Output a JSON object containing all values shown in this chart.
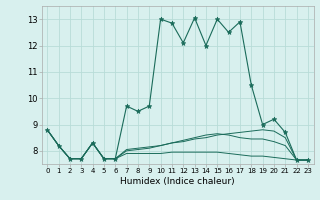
{
  "xlabel": "Humidex (Indice chaleur)",
  "background_color": "#d8f0ee",
  "grid_color": "#b8dcd8",
  "line_color": "#1a6b5a",
  "xlim": [
    -0.5,
    23.5
  ],
  "ylim": [
    7.5,
    13.5
  ],
  "xticks": [
    0,
    1,
    2,
    3,
    4,
    5,
    6,
    7,
    8,
    9,
    10,
    11,
    12,
    13,
    14,
    15,
    16,
    17,
    18,
    19,
    20,
    21,
    22,
    23
  ],
  "yticks": [
    8,
    9,
    10,
    11,
    12,
    13
  ],
  "series_main": [
    8.8,
    8.2,
    7.7,
    7.7,
    8.3,
    7.7,
    7.7,
    9.7,
    9.5,
    9.7,
    13.0,
    12.85,
    12.1,
    13.05,
    12.0,
    13.0,
    12.5,
    12.9,
    10.5,
    9.0,
    9.2,
    8.7,
    7.65,
    7.65
  ],
  "series_other": [
    [
      8.8,
      8.2,
      7.7,
      7.7,
      8.3,
      7.7,
      7.7,
      8.05,
      8.1,
      8.15,
      8.2,
      8.3,
      8.35,
      8.45,
      8.5,
      8.6,
      8.65,
      8.7,
      8.75,
      8.8,
      8.75,
      8.5,
      7.65,
      7.65
    ],
    [
      8.8,
      8.2,
      7.7,
      7.7,
      8.3,
      7.7,
      7.7,
      7.9,
      7.9,
      7.9,
      7.9,
      7.95,
      7.95,
      7.95,
      7.95,
      7.95,
      7.9,
      7.85,
      7.8,
      7.8,
      7.75,
      7.7,
      7.65,
      7.65
    ],
    [
      8.8,
      8.2,
      7.7,
      7.7,
      8.3,
      7.7,
      7.7,
      8.0,
      8.05,
      8.1,
      8.2,
      8.3,
      8.4,
      8.5,
      8.6,
      8.65,
      8.6,
      8.5,
      8.45,
      8.45,
      8.35,
      8.2,
      7.65,
      7.65
    ]
  ]
}
